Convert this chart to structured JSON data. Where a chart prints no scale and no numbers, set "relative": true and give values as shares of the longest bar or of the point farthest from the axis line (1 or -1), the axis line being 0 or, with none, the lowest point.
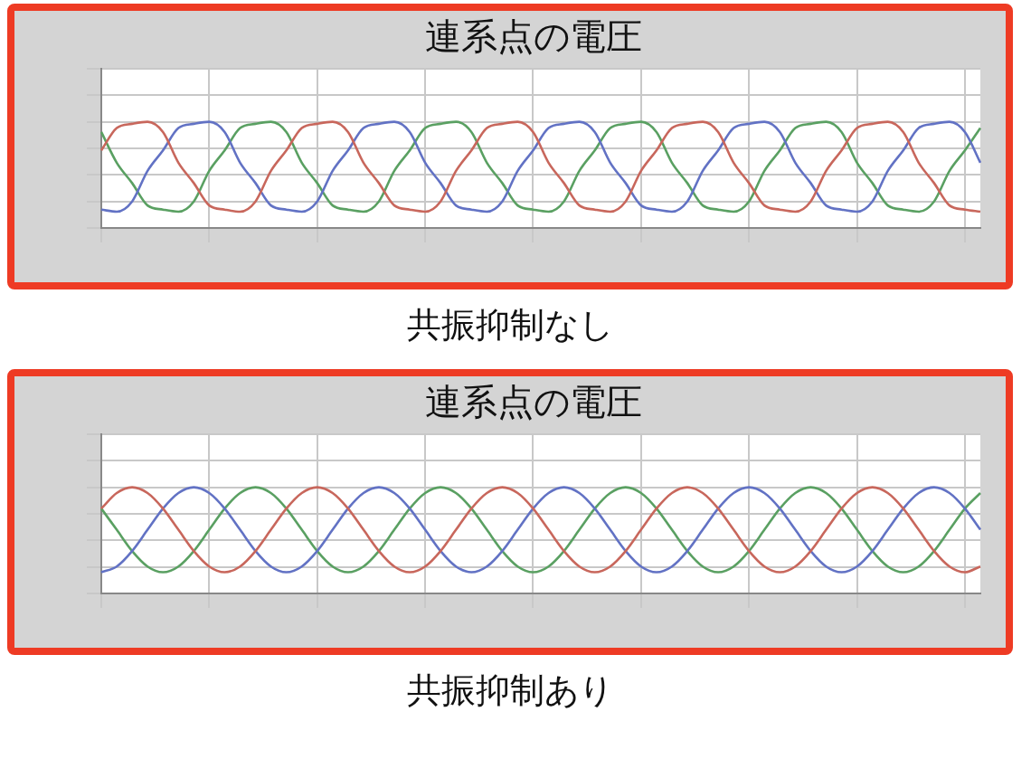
{
  "chart_data": [
    {
      "type": "line",
      "title": "連系点の電圧",
      "annotations": [
        "共振抑制なし"
      ],
      "relative": true,
      "grid": true,
      "tick_labels": false,
      "legend": false,
      "categories": [
        null,
        null,
        null,
        null,
        null,
        null,
        null,
        null,
        null,
        null,
        null,
        null,
        null,
        null,
        null,
        null,
        null,
        null,
        null,
        null,
        null,
        null,
        null,
        null,
        null,
        null,
        null,
        null,
        null,
        null,
        null,
        null,
        null,
        null,
        null,
        null,
        null,
        null,
        null,
        null,
        null,
        null,
        null,
        null,
        null,
        null,
        null,
        null,
        null,
        null,
        null,
        null,
        null,
        null,
        null,
        null,
        null,
        null
      ],
      "series": [
        {
          "color": "#c8675c",
          "values": [
            0.731,
            0.942,
            0.981,
            1,
            0.904,
            0.615,
            0.423,
            0.212,
            0.173,
            0.154,
            0.25,
            0.538,
            0.731,
            0.942,
            0.981,
            1,
            0.904,
            0.615,
            0.423,
            0.212,
            0.173,
            0.154,
            0.25,
            0.538,
            0.731,
            0.942,
            0.981,
            1,
            0.904,
            0.615,
            0.423,
            0.212,
            0.173,
            0.154,
            0.25,
            0.538,
            0.731,
            0.942,
            0.981,
            1,
            0.904,
            0.615,
            0.423,
            0.212,
            0.173,
            0.154,
            0.25,
            0.538,
            0.731,
            0.942,
            0.981,
            1,
            0.904,
            0.615,
            0.423,
            0.212,
            0.173,
            0.154
          ]
        },
        {
          "color": "#6272c4",
          "values": [
            0.173,
            0.154,
            0.25,
            0.538,
            0.731,
            0.942,
            0.981,
            1,
            0.904,
            0.615,
            0.423,
            0.212,
            0.173,
            0.154,
            0.25,
            0.538,
            0.731,
            0.942,
            0.981,
            1,
            0.904,
            0.615,
            0.423,
            0.212,
            0.173,
            0.154,
            0.25,
            0.538,
            0.731,
            0.942,
            0.981,
            1,
            0.904,
            0.615,
            0.423,
            0.212,
            0.173,
            0.154,
            0.25,
            0.538,
            0.731,
            0.942,
            0.981,
            1,
            0.904,
            0.615,
            0.423,
            0.212,
            0.173,
            0.154,
            0.25,
            0.538,
            0.731,
            0.942,
            0.981,
            1,
            0.904,
            0.615
          ]
        },
        {
          "color": "#5aa062",
          "values": [
            0.904,
            0.615,
            0.423,
            0.212,
            0.173,
            0.154,
            0.25,
            0.538,
            0.731,
            0.942,
            0.981,
            1,
            0.904,
            0.615,
            0.423,
            0.212,
            0.173,
            0.154,
            0.25,
            0.538,
            0.731,
            0.942,
            0.981,
            1,
            0.904,
            0.615,
            0.423,
            0.212,
            0.173,
            0.154,
            0.25,
            0.538,
            0.731,
            0.942,
            0.981,
            1,
            0.904,
            0.615,
            0.423,
            0.212,
            0.173,
            0.154,
            0.25,
            0.538,
            0.731,
            0.942,
            0.981,
            1,
            0.904,
            0.615,
            0.423,
            0.212,
            0.173,
            0.154,
            0.25,
            0.538,
            0.731,
            0.942
          ]
        }
      ]
    },
    {
      "type": "line",
      "title": "連系点の電圧",
      "annotations": [
        "共振抑制あり"
      ],
      "relative": true,
      "grid": true,
      "tick_labels": false,
      "legend": false,
      "categories": [
        null,
        null,
        null,
        null,
        null,
        null,
        null,
        null,
        null,
        null,
        null,
        null,
        null,
        null,
        null,
        null,
        null,
        null,
        null,
        null,
        null,
        null,
        null,
        null,
        null,
        null,
        null,
        null,
        null,
        null,
        null,
        null,
        null,
        null,
        null,
        null,
        null,
        null,
        null,
        null,
        null,
        null,
        null,
        null,
        null,
        null,
        null,
        null,
        null,
        null,
        null,
        null,
        null,
        null,
        null,
        null,
        null,
        null
      ],
      "series": [
        {
          "color": "#c8675c",
          "values": [
            0.8,
            0.946,
            1,
            0.946,
            0.8,
            0.6,
            0.4,
            0.254,
            0.2,
            0.254,
            0.4,
            0.6,
            0.8,
            0.946,
            1,
            0.946,
            0.8,
            0.6,
            0.4,
            0.254,
            0.2,
            0.254,
            0.4,
            0.6,
            0.8,
            0.946,
            1,
            0.946,
            0.8,
            0.6,
            0.4,
            0.254,
            0.2,
            0.254,
            0.4,
            0.6,
            0.8,
            0.946,
            1,
            0.946,
            0.8,
            0.6,
            0.4,
            0.254,
            0.2,
            0.254,
            0.4,
            0.6,
            0.8,
            0.946,
            1,
            0.946,
            0.8,
            0.6,
            0.4,
            0.254,
            0.2,
            0.254
          ]
        },
        {
          "color": "#6272c4",
          "values": [
            0.2,
            0.254,
            0.4,
            0.6,
            0.8,
            0.946,
            1,
            0.946,
            0.8,
            0.6,
            0.4,
            0.254,
            0.2,
            0.254,
            0.4,
            0.6,
            0.8,
            0.946,
            1,
            0.946,
            0.8,
            0.6,
            0.4,
            0.254,
            0.2,
            0.254,
            0.4,
            0.6,
            0.8,
            0.946,
            1,
            0.946,
            0.8,
            0.6,
            0.4,
            0.254,
            0.2,
            0.254,
            0.4,
            0.6,
            0.8,
            0.946,
            1,
            0.946,
            0.8,
            0.6,
            0.4,
            0.254,
            0.2,
            0.254,
            0.4,
            0.6,
            0.8,
            0.946,
            1,
            0.946,
            0.8,
            0.6
          ]
        },
        {
          "color": "#5aa062",
          "values": [
            0.8,
            0.6,
            0.4,
            0.254,
            0.2,
            0.254,
            0.4,
            0.6,
            0.8,
            0.946,
            1,
            0.946,
            0.8,
            0.6,
            0.4,
            0.254,
            0.2,
            0.254,
            0.4,
            0.6,
            0.8,
            0.946,
            1,
            0.946,
            0.8,
            0.6,
            0.4,
            0.254,
            0.2,
            0.254,
            0.4,
            0.6,
            0.8,
            0.946,
            1,
            0.946,
            0.8,
            0.6,
            0.4,
            0.254,
            0.2,
            0.254,
            0.4,
            0.6,
            0.8,
            0.946,
            1,
            0.946,
            0.8,
            0.6,
            0.4,
            0.254,
            0.2,
            0.254,
            0.4,
            0.6,
            0.8,
            0.946
          ]
        }
      ]
    }
  ]
}
